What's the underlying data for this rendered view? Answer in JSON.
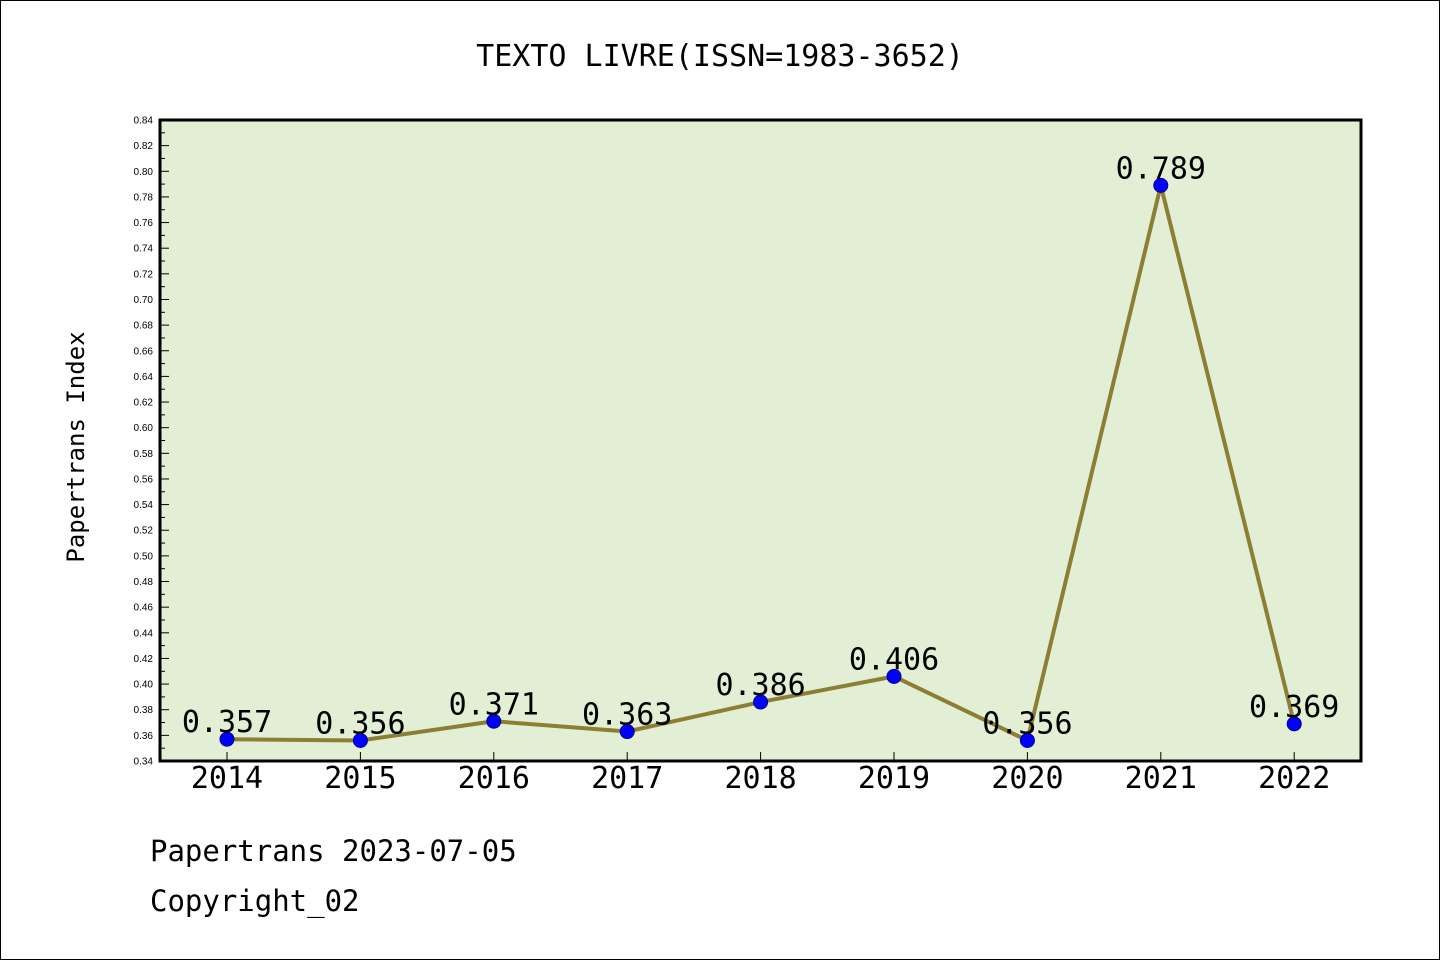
{
  "chart_data": {
    "type": "line",
    "title": "TEXTO LIVRE(ISSN=1983-3652)",
    "xlabel": "",
    "ylabel": "Papertrans Index",
    "categories": [
      "2014",
      "2015",
      "2016",
      "2017",
      "2018",
      "2019",
      "2020",
      "2021",
      "2022"
    ],
    "series": [
      {
        "values": [
          0.357,
          0.356,
          0.371,
          0.363,
          0.386,
          0.406,
          0.356,
          0.789,
          0.369
        ],
        "data_labels": [
          "0.357",
          "0.356",
          "0.371",
          "0.363",
          "0.386",
          "0.406",
          "0.356",
          "0.789",
          "0.369"
        ]
      }
    ],
    "ylim": [
      0.34,
      0.84
    ],
    "yticks": [
      "0.34",
      "0.36",
      "0.38",
      "0.40",
      "0.42",
      "0.44",
      "0.46",
      "0.48",
      "0.50",
      "0.52",
      "0.54",
      "0.56",
      "0.58",
      "0.60",
      "0.62",
      "0.64",
      "0.66",
      "0.68",
      "0.70",
      "0.72",
      "0.74",
      "0.76",
      "0.78",
      "0.80",
      "0.82",
      "0.84"
    ],
    "grid": false,
    "legend": "none",
    "colors": {
      "plot_background": "#e2efd5",
      "line": "#8c7f34",
      "marker": "#0000ff"
    }
  },
  "footer": {
    "line1": "Papertrans 2023-07-05",
    "line2": "Copyright_02"
  }
}
